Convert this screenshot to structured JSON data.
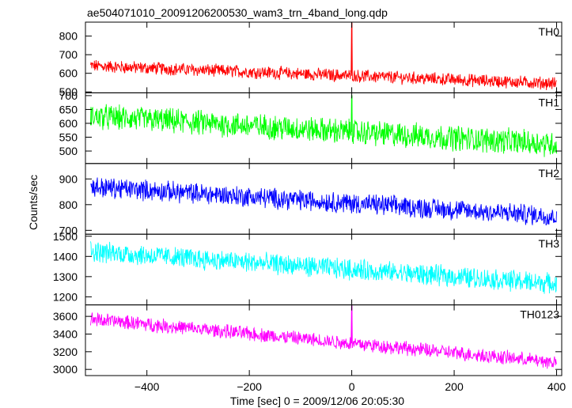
{
  "title": "ae504071010_20091206200530_wam3_trn_4band_long.qdp",
  "xlabel": "Time [sec] 0 = 2009/12/06 20:05:30",
  "ylabel": "Counts/sec",
  "chart_data": {
    "type": "line",
    "title": "ae504071010_20091206200530_wam3_trn_4band_long.qdp",
    "xlabel": "Time [sec] 0 = 2009/12/06 20:05:30",
    "ylabel": "Counts/sec",
    "xlim": [
      -520,
      410
    ],
    "xticks": [
      -400,
      -200,
      0,
      200,
      400
    ],
    "x_start": -510,
    "x_end": 400,
    "grid": false,
    "legend": "none",
    "panels": [
      {
        "name": "TH0",
        "color": "#ff0000",
        "ylim": [
          495,
          875
        ],
        "yticks": [
          500,
          600,
          700,
          800
        ],
        "trend_start": 640,
        "trend_end": 545,
        "noise_amplitude": 30,
        "spike": {
          "x": 0,
          "y": 870
        }
      },
      {
        "name": "TH1",
        "color": "#00ff00",
        "ylim": [
          455,
          710
        ],
        "yticks": [
          500,
          550,
          600,
          650,
          700
        ],
        "trend_start": 625,
        "trend_end": 525,
        "noise_amplitude": 40,
        "spike": {
          "x": 0,
          "y": 700
        }
      },
      {
        "name": "TH2",
        "color": "#0000ff",
        "ylim": [
          685,
          960
        ],
        "yticks": [
          700,
          800,
          900
        ],
        "trend_start": 870,
        "trend_end": 755,
        "noise_amplitude": 35,
        "spike": null
      },
      {
        "name": "TH3",
        "color": "#00ffff",
        "ylim": [
          1160,
          1510
        ],
        "yticks": [
          1200,
          1300,
          1400,
          1500
        ],
        "trend_start": 1425,
        "trend_end": 1265,
        "noise_amplitude": 45,
        "spike": null
      },
      {
        "name": "TH0123",
        "color": "#ff00ff",
        "ylim": [
          2930,
          3730
        ],
        "yticks": [
          3000,
          3200,
          3400,
          3600
        ],
        "trend_start": 3570,
        "trend_end": 3080,
        "noise_amplitude": 70,
        "spike": {
          "x": 0,
          "y": 3720
        }
      }
    ]
  }
}
